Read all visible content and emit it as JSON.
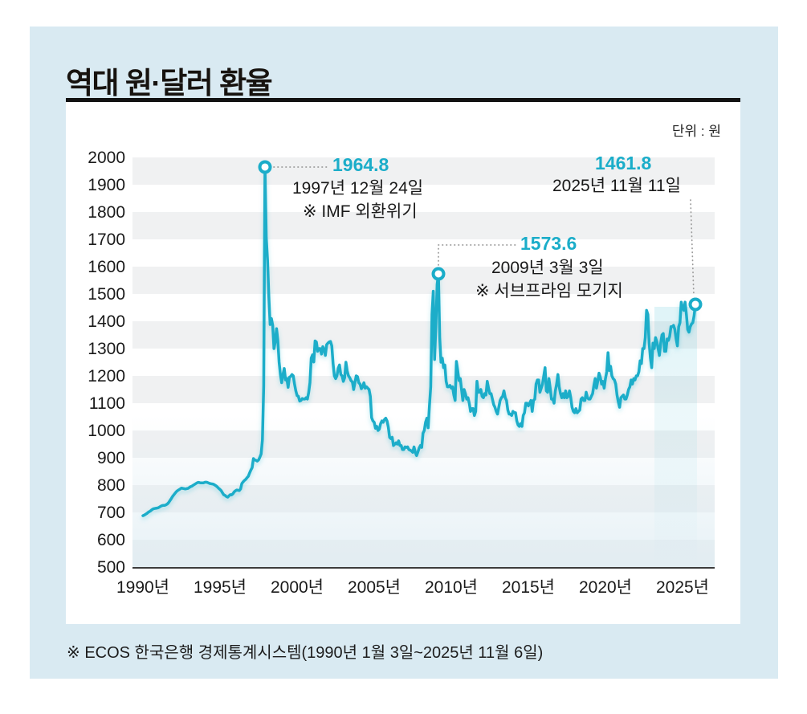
{
  "page": {
    "title": "역대 원·달러 환율",
    "unit_label": "단위 : 원",
    "source": "※ ECOS 한국은행 경제통계시스템(1990년 1월 3일~2025년 11월 6일)"
  },
  "colors": {
    "accent": "#1badc9",
    "card_bg": "#d9eaf2",
    "stripe": "#f0f1f2",
    "stripe_tint": "#dcebf2",
    "axis": "#3c3c3c",
    "text": "#1a1a1a",
    "leader_dots": "#9a9a9a"
  },
  "annotations": [
    {
      "id": "imf-crisis",
      "value": "1964.8",
      "date": "1997년 12월 24일",
      "note": "※ IMF 외환위기",
      "x_year": 1997.917,
      "y_value": 1964.8
    },
    {
      "id": "subprime",
      "value": "1573.6",
      "date": "2009년 3월 3일",
      "note": "※ 서브프라임 모기지",
      "x_year": 2009.167,
      "y_value": 1573.6
    },
    {
      "id": "latest",
      "value": "1461.8",
      "date": "2025년 11월 11일",
      "x_year": 2025.833,
      "y_value": 1461.8
    }
  ],
  "chart_data": {
    "type": "line",
    "title": "역대 원·달러 환율",
    "ylabel": "원",
    "ylim": [
      500,
      2000
    ],
    "ytick_step": 100,
    "xticks": [
      "1990년",
      "1995년",
      "2000년",
      "2005년",
      "2010년",
      "2015년",
      "2020년",
      "2025년"
    ],
    "xtick_years": [
      1990,
      1995,
      2000,
      2005,
      2010,
      2015,
      2020,
      2025
    ],
    "grid": "striped-bands",
    "legend": "none",
    "x_start_year": 1990,
    "interval_months": 1,
    "series_name": "원·달러 환율",
    "values": [
      688,
      690,
      693,
      696,
      700,
      703,
      706,
      710,
      713,
      714,
      715,
      716,
      717,
      720,
      723,
      725,
      726,
      726,
      728,
      731,
      736,
      743,
      750,
      758,
      764,
      770,
      776,
      780,
      783,
      786,
      789,
      788,
      787,
      786,
      787,
      788,
      791,
      794,
      796,
      799,
      802,
      805,
      808,
      810,
      809,
      808,
      808,
      808,
      810,
      811,
      810,
      808,
      806,
      805,
      804,
      803,
      800,
      797,
      793,
      788,
      784,
      779,
      771,
      764,
      762,
      758,
      756,
      761,
      765,
      764,
      768,
      775,
      779,
      782,
      781,
      780,
      786,
      806,
      812,
      817,
      821,
      827,
      832,
      844,
      855,
      864,
      897,
      892,
      891,
      888,
      892,
      902,
      914,
      965,
      1163,
      1964.8,
      1706,
      1623,
      1490,
      1388,
      1410,
      1385,
      1300,
      1325,
      1373,
      1330,
      1250,
      1205,
      1175,
      1205,
      1227,
      1185,
      1190,
      1158,
      1195,
      1198,
      1205,
      1200,
      1170,
      1145,
      1128,
      1125,
      1108,
      1110,
      1117,
      1115,
      1115,
      1120,
      1115,
      1139,
      1175,
      1265,
      1277,
      1251,
      1328,
      1324,
      1290,
      1300,
      1300,
      1280,
      1307,
      1297,
      1275,
      1314,
      1320,
      1324,
      1326,
      1310,
      1245,
      1200,
      1190,
      1200,
      1228,
      1240,
      1205,
      1200,
      1180,
      1193,
      1250,
      1218,
      1200,
      1193,
      1182,
      1178,
      1150,
      1175,
      1200,
      1197,
      1175,
      1170,
      1153,
      1160,
      1175,
      1155,
      1160,
      1155,
      1150,
      1125,
      1047,
      1035,
      1030,
      1008,
      1015,
      1000,
      1005,
      1025,
      1035,
      1030,
      1040,
      1045,
      1035,
      1012,
      975,
      970,
      975,
      945,
      950,
      955,
      950,
      962,
      945,
      945,
      930,
      930,
      940,
      938,
      940,
      930,
      928,
      925,
      920,
      940,
      920,
      908,
      921,
      936,
      945,
      938,
      990,
      1000,
      1030,
      1045,
      1010,
      1090,
      1160,
      1425,
      1510,
      1260,
      1380,
      1535,
      1573.6,
      1340,
      1250,
      1265,
      1230,
      1240,
      1180,
      1160,
      1160,
      1165,
      1155,
      1160,
      1130,
      1110,
      1253,
      1220,
      1183,
      1190,
      1150,
      1110,
      1150,
      1135,
      1115,
      1120,
      1100,
      1070,
      1080,
      1080,
      1055,
      1070,
      1180,
      1140,
      1140,
      1150,
      1125,
      1120,
      1135,
      1130,
      1180,
      1155,
      1135,
      1135,
      1115,
      1095,
      1085,
      1070,
      1060,
      1085,
      1110,
      1120,
      1125,
      1145,
      1120,
      1110,
      1075,
      1060,
      1060,
      1055,
      1070,
      1065,
      1065,
      1035,
      1020,
      1015,
      1025,
      1015,
      1055,
      1065,
      1100,
      1100,
      1090,
      1100,
      1110,
      1070,
      1110,
      1115,
      1170,
      1185,
      1185,
      1140,
      1155,
      1170,
      1200,
      1230,
      1145,
      1140,
      1190,
      1155,
      1115,
      1115,
      1100,
      1145,
      1170,
      1205,
      1160,
      1135,
      1120,
      1135,
      1120,
      1145,
      1120,
      1125,
      1145,
      1120,
      1085,
      1070,
      1065,
      1080,
      1065,
      1070,
      1075,
      1115,
      1120,
      1110,
      1110,
      1140,
      1120,
      1115,
      1115,
      1125,
      1135,
      1165,
      1190,
      1155,
      1180,
      1210,
      1195,
      1170,
      1180,
      1155,
      1190,
      1215,
      1285,
      1220,
      1235,
      1200,
      1190,
      1185,
      1170,
      1130,
      1105,
      1085,
      1120,
      1125,
      1130,
      1115,
      1115,
      1130,
      1150,
      1160,
      1185,
      1170,
      1190,
      1185,
      1200,
      1200,
      1215,
      1255,
      1245,
      1300,
      1300,
      1340,
      1440,
      1425,
      1320,
      1265,
      1230,
      1320,
      1300,
      1340,
      1325,
      1300,
      1275,
      1320,
      1350,
      1355,
      1290,
      1290,
      1335,
      1330,
      1345,
      1380,
      1380,
      1385,
      1370,
      1335,
      1310,
      1380,
      1395,
      1470,
      1450,
      1440,
      1470,
      1425,
      1370,
      1360,
      1380,
      1390,
      1395,
      1420,
      1461.8
    ]
  }
}
